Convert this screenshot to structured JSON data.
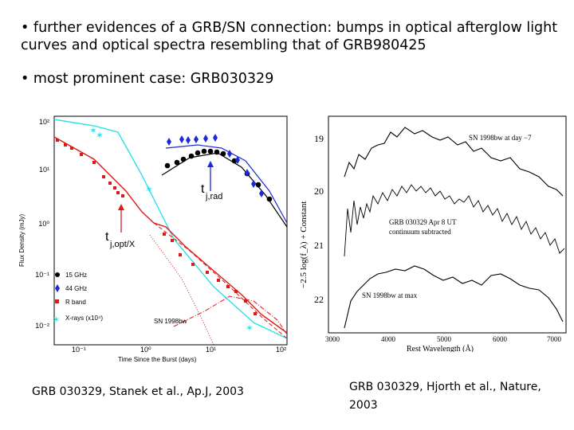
{
  "bullets": [
    {
      "marker": "•",
      "text": "further evidences of a GRB/SN connection: bumps in optical afterglow light curves and optical spectra resembling that of GRB980425"
    },
    {
      "marker": "•",
      "text": "most prominent case: GRB030329"
    }
  ],
  "left_figure": {
    "ylabel": "Flux Density (mJy)",
    "xlabel": "Time Since the Burst (days)",
    "y_ticks": [
      "10²",
      "10¹",
      "10⁰",
      "10⁻¹",
      "10⁻²"
    ],
    "x_ticks": [
      "10⁻¹",
      "10⁰",
      "10¹",
      "10²"
    ],
    "legend": [
      "15 GHz",
      "44 GHz",
      "R band",
      "X-rays (x10⁴)"
    ],
    "annotations": {
      "t_rad": "t",
      "t_rad_sub": "j,rad",
      "t_opt": "t",
      "t_opt_sub": "j,opt/X",
      "sn": "SN 1998bw"
    },
    "colors": {
      "c15": "#000000",
      "c44": "#1a2ad8",
      "cR": "#e01818",
      "cX": "#2ee0e8"
    }
  },
  "right_figure": {
    "ylabel": "−2.5 log(f_λ) + Constant",
    "xlabel": "Rest Wavelength (Å)",
    "y_ticks": [
      "19",
      "20",
      "21",
      "22"
    ],
    "x_ticks": [
      "3000",
      "4000",
      "5000",
      "6000",
      "7000"
    ],
    "labels": {
      "top": "SN 1998bw at day −7",
      "mid1": "GRB 030329 Apr 8 UT",
      "mid2": "continuum subtracted",
      "bottom": "SN 1998bw at max"
    }
  },
  "captions": {
    "left": "GRB 030329, Stanek et al., Ap.J, 2003",
    "right": "GRB 030329, Hjorth et al., Nature, 2003"
  }
}
